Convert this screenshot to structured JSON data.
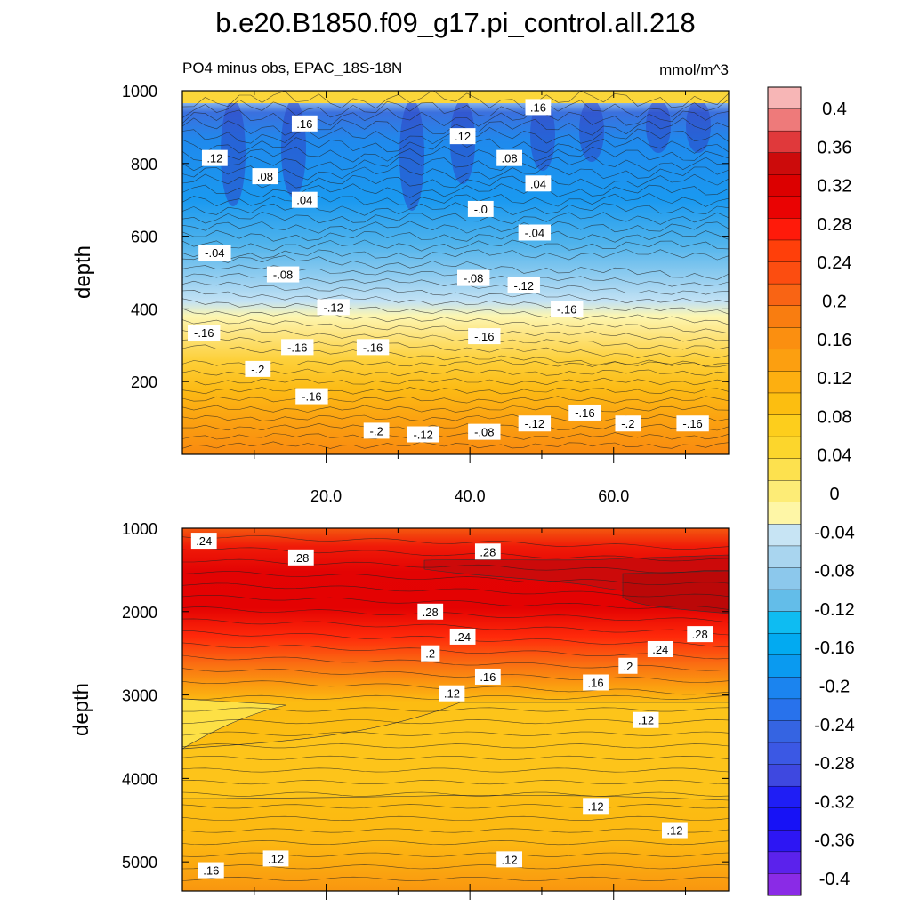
{
  "title": "b.e20.B1850.f09_g17.pi_control.all.218",
  "subtitle_left": "PO4 minus obs, EPAC_18S-18N",
  "subtitle_right": "mmol/m^3",
  "chart_data": {
    "type": "heatmap",
    "x_range": [
      0,
      76
    ],
    "xticks": [
      20,
      40,
      60
    ],
    "xtick_labels": [
      "20.0",
      "40.0",
      "60.0"
    ],
    "panels": [
      {
        "name": "upper",
        "ylabel": "depth",
        "ylim": [
          1000,
          0
        ],
        "yticks": [
          200,
          400,
          600,
          800,
          1000
        ],
        "ytick_labels": [
          "200",
          "400",
          "600",
          "800",
          "1000"
        ],
        "contour_labels": [
          {
            "text": "-.2",
            "x": 27,
            "y": 65
          },
          {
            "text": "-.12",
            "x": 33.5,
            "y": 55
          },
          {
            "text": "-.08",
            "x": 42,
            "y": 62
          },
          {
            "text": "-.12",
            "x": 49,
            "y": 85
          },
          {
            "text": "-.16",
            "x": 56,
            "y": 115
          },
          {
            "text": "-.2",
            "x": 62,
            "y": 85
          },
          {
            "text": "-.16",
            "x": 71,
            "y": 85
          },
          {
            "text": "-.16",
            "x": 18,
            "y": 160
          },
          {
            "text": "-.2",
            "x": 10.5,
            "y": 235
          },
          {
            "text": "-.16",
            "x": 3,
            "y": 335
          },
          {
            "text": "-.16",
            "x": 16,
            "y": 295
          },
          {
            "text": "-.16",
            "x": 26.5,
            "y": 295
          },
          {
            "text": "-.16",
            "x": 42,
            "y": 325
          },
          {
            "text": "-.12",
            "x": 21,
            "y": 405
          },
          {
            "text": "-.16",
            "x": 53.5,
            "y": 400
          },
          {
            "text": "-.08",
            "x": 14,
            "y": 495
          },
          {
            "text": "-.08",
            "x": 40.5,
            "y": 485
          },
          {
            "text": "-.12",
            "x": 47.5,
            "y": 465
          },
          {
            "text": "-.04",
            "x": 4.5,
            "y": 555
          },
          {
            "text": "-.04",
            "x": 49,
            "y": 610
          },
          {
            "text": "-.0",
            "x": 41.5,
            "y": 675
          },
          {
            "text": ".04",
            "x": 17,
            "y": 700
          },
          {
            "text": ".04",
            "x": 49.5,
            "y": 745
          },
          {
            "text": ".08",
            "x": 11.5,
            "y": 765
          },
          {
            "text": ".08",
            "x": 45.5,
            "y": 815
          },
          {
            "text": ".12",
            "x": 4.5,
            "y": 815
          },
          {
            "text": ".12",
            "x": 39,
            "y": 875
          },
          {
            "text": ".16",
            "x": 17,
            "y": 910
          },
          {
            "text": ".16",
            "x": 49.5,
            "y": 955
          }
        ]
      },
      {
        "name": "lower",
        "ylabel": "depth",
        "ylim": [
          1000,
          5350
        ],
        "yticks": [
          1000,
          2000,
          3000,
          4000,
          5000
        ],
        "ytick_labels": [
          "1000",
          "2000",
          "3000",
          "4000",
          "5000"
        ],
        "contour_labels": [
          {
            "text": ".24",
            "x": 3,
            "y": 1150
          },
          {
            "text": ".28",
            "x": 16.5,
            "y": 1350
          },
          {
            "text": ".28",
            "x": 42.5,
            "y": 1280
          },
          {
            "text": ".28",
            "x": 34.5,
            "y": 2000
          },
          {
            "text": ".24",
            "x": 39,
            "y": 2300
          },
          {
            "text": ".2",
            "x": 34.5,
            "y": 2500
          },
          {
            "text": ".16",
            "x": 42.5,
            "y": 2780
          },
          {
            "text": ".12",
            "x": 37.5,
            "y": 2980
          },
          {
            "text": ".16",
            "x": 57.5,
            "y": 2850
          },
          {
            "text": ".2",
            "x": 62,
            "y": 2650
          },
          {
            "text": ".24",
            "x": 66.5,
            "y": 2450
          },
          {
            "text": ".28",
            "x": 72,
            "y": 2270
          },
          {
            "text": ".12",
            "x": 64.5,
            "y": 3300
          },
          {
            "text": ".12",
            "x": 57.5,
            "y": 4330
          },
          {
            "text": ".12",
            "x": 68.5,
            "y": 4620
          },
          {
            "text": ".12",
            "x": 13,
            "y": 4960
          },
          {
            "text": ".12",
            "x": 45.5,
            "y": 4970
          },
          {
            "text": ".16",
            "x": 4,
            "y": 5100
          }
        ]
      }
    ],
    "colorbar": {
      "labels": [
        "0.4",
        "0.36",
        "0.32",
        "0.28",
        "0.24",
        "0.2",
        "0.16",
        "0.12",
        "0.08",
        "0.04",
        "0",
        "-0.04",
        "-0.08",
        "-0.12",
        "-0.16",
        "-0.2",
        "-0.24",
        "-0.28",
        "-0.32",
        "-0.36",
        "-0.4"
      ],
      "colors": [
        "#f7b6b6",
        "#ee7a7a",
        "#e0393b",
        "#cc0b0b",
        "#dc0000",
        "#ea0303",
        "#ff1a0a",
        "#ff3f0a",
        "#fc4d10",
        "#f96414",
        "#f97d10",
        "#fb8f10",
        "#fc9f10",
        "#fdaf10",
        "#fcbe10",
        "#fdce1c",
        "#fcd62c",
        "#fde14e",
        "#fdec76",
        "#fef6a6",
        "#c7e4f4",
        "#a9d5ef",
        "#8cc8ec",
        "#63bde9",
        "#0ebcf2",
        "#02aaf1",
        "#0a9af0",
        "#1b84ef",
        "#2872ec",
        "#3564e2",
        "#3b58e4",
        "#3e48e0",
        "#1f1ef5",
        "#1712f6",
        "#2d16f3",
        "#5b22ec",
        "#8a2be6"
      ]
    }
  }
}
